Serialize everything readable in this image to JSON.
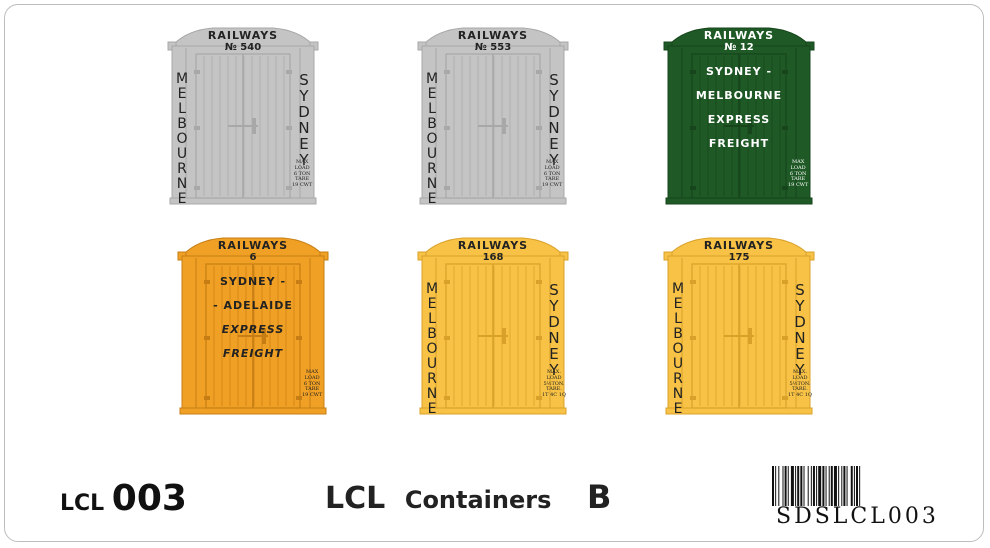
{
  "containers": [
    {
      "key": "c540",
      "fill": "#c4c4c4",
      "stroke": "#a8a8a8",
      "ink": "#222222",
      "top": "RAILWAYS",
      "num": "№ 540",
      "left_word": "MELBOURNE",
      "right_word": "SYDNEY",
      "center": [],
      "maxload": "MAX\nLOAD\n6 TON\nTARE\n19 CWT"
    },
    {
      "key": "c553",
      "fill": "#c4c4c4",
      "stroke": "#a8a8a8",
      "ink": "#222222",
      "top": "RAILWAYS",
      "num": "№ 553",
      "left_word": "MELBOURNE",
      "right_word": "SYDNEY",
      "center": [],
      "maxload": "MAX\nLOAD\n6 TON\nTARE\n19 CWT"
    },
    {
      "key": "c12",
      "fill": "#1f5a26",
      "stroke": "#16451c",
      "ink": "#ffffff",
      "top": "RAILWAYS",
      "num": "№ 12",
      "left_word": "",
      "right_word": "",
      "center": [
        "SYDNEY -",
        "MELBOURNE",
        "EXPRESS",
        "FREIGHT"
      ],
      "maxload": "MAX\nLOAD\n6 TON\nTARE\n19 CWT"
    },
    {
      "key": "c6",
      "fill": "#f0a024",
      "stroke": "#c67e14",
      "ink": "#222222",
      "top": "RAILWAYS",
      "num": "6",
      "left_word": "",
      "right_word": "",
      "center": [
        "SYDNEY  -",
        "- ADELAIDE",
        "EXPRESS",
        "FREIGHT"
      ],
      "maxload": "MAX\nLOAD\n6 TON\nTARE\n19 CWT"
    },
    {
      "key": "c168",
      "fill": "#f7c245",
      "stroke": "#d9a12a",
      "ink": "#222222",
      "top": "RAILWAYS",
      "num": "168",
      "left_word": "MELBOURNE",
      "right_word": "SYDNEY",
      "center": [],
      "maxload": "MAX.\nLOAD\n5½TON.\nTARE.\n1T 4C 1Q"
    },
    {
      "key": "c175",
      "fill": "#f7c245",
      "stroke": "#d9a12a",
      "ink": "#222222",
      "top": "RAILWAYS",
      "num": "175",
      "left_word": "MELBOURNE",
      "right_word": "SYDNEY",
      "center": [],
      "maxload": "MAX.\nLOAD\n5½TON.\nTARE.\n1T 4C 1Q"
    }
  ],
  "footer": {
    "code_prefix": "LCL",
    "code_number": "003",
    "title_a": "LCL",
    "title_b": "Containers",
    "title_c": "B",
    "barcode_text": "SDSLCL003"
  }
}
